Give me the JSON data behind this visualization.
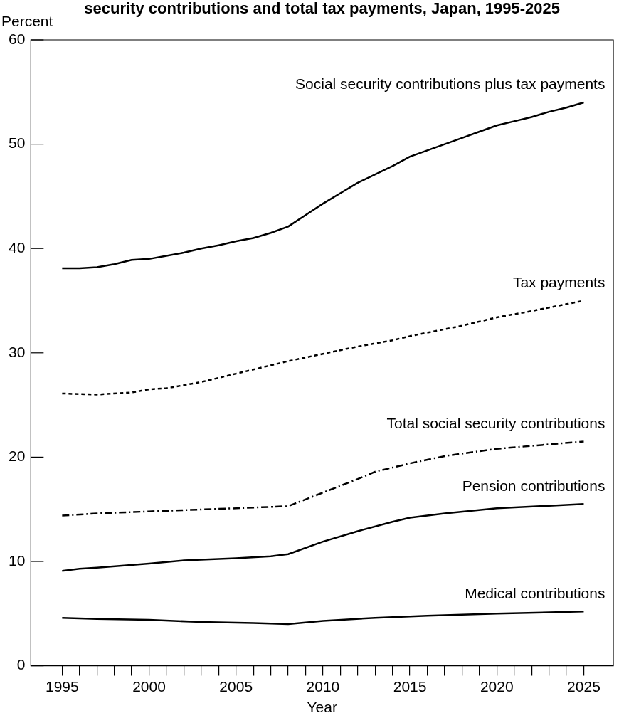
{
  "chart_data": {
    "type": "line",
    "title": "security contributions and total tax payments, Japan, 1995-2025",
    "xlabel": "Year",
    "ylabel": "Percent",
    "xlim": [
      1993.2,
      2026.7
    ],
    "ylim": [
      0,
      60
    ],
    "yticks": [
      0,
      10,
      20,
      30,
      40,
      50,
      60
    ],
    "xticks": [
      1995,
      {
        "value": 1996,
        "label": null
      },
      {
        "value": 1997,
        "label": null
      },
      {
        "value": 1998,
        "label": null
      },
      {
        "value": 1999,
        "label": null
      },
      2000,
      {
        "value": 2001,
        "label": null
      },
      {
        "value": 2002,
        "label": null
      },
      {
        "value": 2003,
        "label": null
      },
      {
        "value": 2004,
        "label": null
      },
      2005,
      {
        "value": 2006,
        "label": null
      },
      {
        "value": 2007,
        "label": null
      },
      {
        "value": 2008,
        "label": null
      },
      {
        "value": 2009,
        "label": null
      },
      2010,
      {
        "value": 2011,
        "label": null
      },
      {
        "value": 2012,
        "label": null
      },
      {
        "value": 2013,
        "label": null
      },
      {
        "value": 2014,
        "label": null
      },
      2015,
      {
        "value": 2016,
        "label": null
      },
      {
        "value": 2017,
        "label": null
      },
      {
        "value": 2018,
        "label": null
      },
      {
        "value": 2019,
        "label": null
      },
      2020,
      {
        "value": 2021,
        "label": null
      },
      {
        "value": 2022,
        "label": null
      },
      {
        "value": 2023,
        "label": null
      },
      {
        "value": 2024,
        "label": null
      },
      2025
    ],
    "legend": false,
    "marker": "none",
    "series": [
      {
        "name": "Social security contributions plus tax payments",
        "color": "#000000",
        "line_style": "solid",
        "x": [
          1995,
          1996,
          1997,
          1998,
          1999,
          2000,
          2001,
          2002,
          2003,
          2004,
          2005,
          2006,
          2007,
          2008,
          2009,
          2010,
          2011,
          2012,
          2013,
          2014,
          2015,
          2016,
          2017,
          2018,
          2019,
          2020,
          2021,
          2022,
          2023,
          2024,
          2025
        ],
        "values": [
          38.1,
          38.1,
          38.2,
          38.5,
          38.9,
          39.0,
          39.3,
          39.6,
          40.0,
          40.3,
          40.7,
          41.0,
          41.5,
          42.1,
          43.2,
          44.3,
          45.3,
          46.3,
          47.1,
          47.9,
          48.8,
          49.4,
          50.0,
          50.6,
          51.2,
          51.8,
          52.2,
          52.6,
          53.1,
          53.5,
          54.0
        ]
      },
      {
        "name": "Tax payments",
        "color": "#000000",
        "line_style": "dashed",
        "x": [
          1995,
          1997,
          1999,
          2000,
          2001,
          2003,
          2005,
          2006,
          2008,
          2010,
          2012,
          2014,
          2015,
          2018,
          2020,
          2022,
          2025
        ],
        "values": [
          26.1,
          26.0,
          26.2,
          26.5,
          26.6,
          27.2,
          28.0,
          28.4,
          29.2,
          29.9,
          30.6,
          31.2,
          31.6,
          32.6,
          33.4,
          34.0,
          35.0
        ]
      },
      {
        "name": "Total social security contributions",
        "color": "#000000",
        "line_style": "dotted",
        "x": [
          1995,
          1997,
          2000,
          2005,
          2008,
          2010,
          2012,
          2013,
          2015,
          2017,
          2020,
          2025
        ],
        "values": [
          14.4,
          14.6,
          14.8,
          15.1,
          15.3,
          16.6,
          17.9,
          18.6,
          19.4,
          20.1,
          20.8,
          21.5
        ]
      },
      {
        "name": "Pension contributions",
        "color": "#000000",
        "line_style": "solid",
        "x": [
          1995,
          1996,
          1997,
          2000,
          2002,
          2005,
          2007,
          2008,
          2010,
          2012,
          2014,
          2015,
          2017,
          2020,
          2025
        ],
        "values": [
          9.1,
          9.3,
          9.4,
          9.8,
          10.1,
          10.3,
          10.5,
          10.7,
          11.9,
          12.9,
          13.8,
          14.2,
          14.6,
          15.1,
          15.5
        ]
      },
      {
        "name": "Medical contributions",
        "color": "#000000",
        "line_style": "solid",
        "x": [
          1995,
          1997,
          2000,
          2003,
          2006,
          2008,
          2010,
          2013,
          2016,
          2020,
          2025
        ],
        "values": [
          4.6,
          4.5,
          4.4,
          4.2,
          4.1,
          4.0,
          4.3,
          4.6,
          4.8,
          5.0,
          5.2
        ]
      }
    ]
  }
}
